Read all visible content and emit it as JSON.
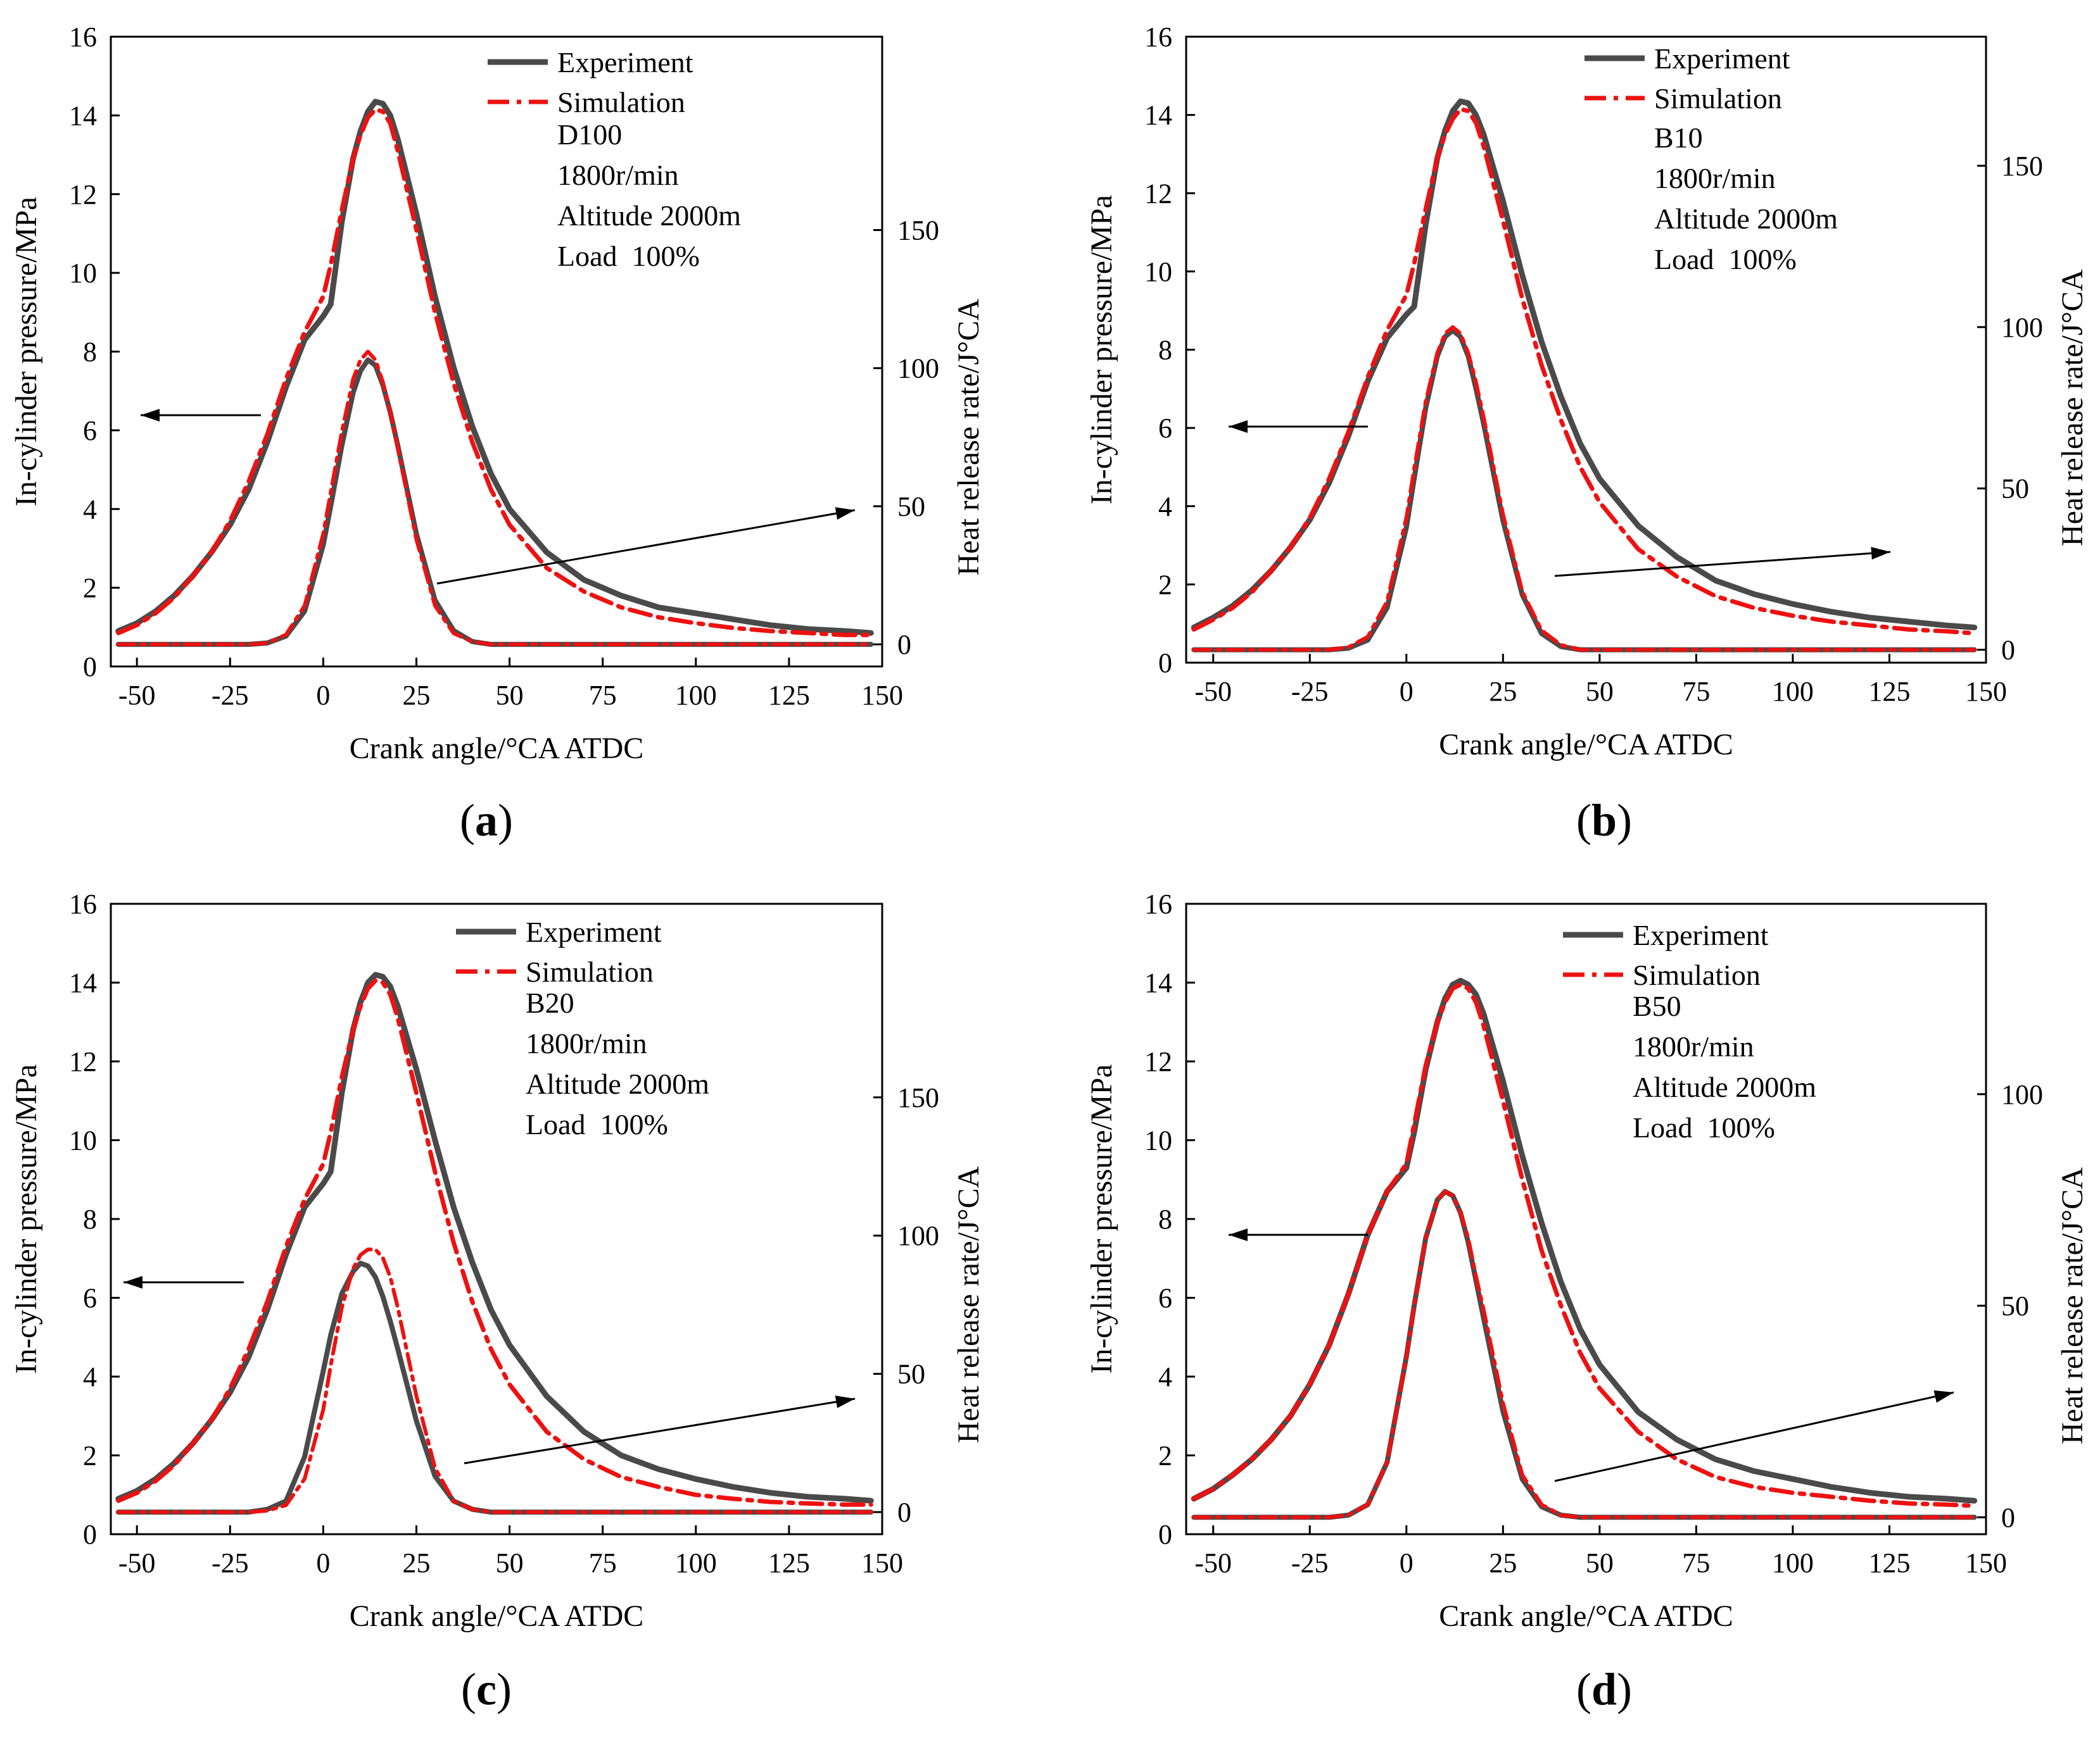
{
  "chart_data": [
    {
      "type": "line",
      "panel": "(a)",
      "caption": "(a)",
      "fuel": "D100",
      "annotations": [
        "D100",
        "1800r/min",
        "Altitude 2000m",
        "Load  100%"
      ],
      "xlabel": "Crank angle/°CA ATDC",
      "ylabel_left": "In-cylinder pressure/MPa",
      "ylabel_right": "Heat release rate/J°CA",
      "xlim": [
        -57,
        150
      ],
      "ylim_left": [
        0,
        16
      ],
      "ylim_right": [
        -8,
        220
      ],
      "x_ticks": [
        "-50",
        "-25",
        "0",
        "25",
        "50",
        "75",
        "100",
        "125",
        "150"
      ],
      "y_ticks_left": [
        "0",
        "2",
        "4",
        "6",
        "8",
        "10",
        "12",
        "14",
        "16"
      ],
      "y_ticks_right": [
        "0",
        "50",
        "100",
        "150"
      ],
      "legend": [
        "Experiment",
        "Simulation"
      ],
      "x": [
        -55,
        -50,
        -45,
        -40,
        -35,
        -30,
        -25,
        -20,
        -15,
        -10,
        -5,
        0,
        2,
        5,
        8,
        10,
        12,
        14,
        16,
        18,
        20,
        25,
        30,
        35,
        40,
        45,
        50,
        60,
        70,
        80,
        90,
        100,
        110,
        120,
        130,
        140,
        147
      ],
      "series": [
        {
          "name": "Experiment",
          "axis": "left",
          "values": [
            0.9,
            1.1,
            1.4,
            1.8,
            2.3,
            2.9,
            3.6,
            4.5,
            5.7,
            7.1,
            8.3,
            8.9,
            9.2,
            11.3,
            12.9,
            13.6,
            14.1,
            14.35,
            14.3,
            14.0,
            13.4,
            11.5,
            9.4,
            7.6,
            6.1,
            4.9,
            4.0,
            2.9,
            2.2,
            1.8,
            1.5,
            1.35,
            1.2,
            1.05,
            0.95,
            0.9,
            0.85
          ]
        },
        {
          "name": "Simulation",
          "axis": "left",
          "values": [
            0.85,
            1.05,
            1.35,
            1.75,
            2.3,
            2.9,
            3.7,
            4.7,
            5.9,
            7.3,
            8.5,
            9.4,
            10.2,
            11.6,
            12.9,
            13.5,
            13.95,
            14.15,
            14.1,
            13.8,
            13.1,
            11.1,
            9.0,
            7.2,
            5.7,
            4.5,
            3.6,
            2.5,
            1.9,
            1.5,
            1.25,
            1.1,
            0.98,
            0.9,
            0.85,
            0.8,
            0.8
          ]
        },
        {
          "name": "Experiment",
          "axis": "right",
          "values": [
            0,
            0,
            0,
            0,
            0,
            0,
            0,
            0,
            0.5,
            3,
            12,
            36,
            50,
            72,
            91,
            99,
            103,
            101,
            94,
            84,
            72,
            40,
            16,
            5,
            1,
            0,
            0,
            0,
            0,
            0,
            0,
            0,
            0,
            0,
            0,
            0,
            0
          ]
        },
        {
          "name": "Simulation",
          "axis": "right",
          "values": [
            0,
            0,
            0,
            0,
            0,
            0,
            0,
            0,
            0.5,
            3.5,
            14,
            40,
            55,
            77,
            96,
            103,
            106,
            103,
            95,
            84,
            71,
            38,
            14,
            4,
            1,
            0,
            0,
            0,
            0,
            0,
            0,
            0,
            0,
            0,
            0,
            0,
            0
          ]
        }
      ]
    },
    {
      "type": "line",
      "panel": "(b)",
      "caption": "(b)",
      "fuel": "B10",
      "annotations": [
        "B10",
        "1800r/min",
        "Altitude 2000m",
        "Load  100%"
      ],
      "xlabel": "Crank angle/°CA ATDC",
      "ylabel_left": "In-cylinder pressure/MPa",
      "ylabel_right": "Heat release rate/J°CA",
      "xlim": [
        -57,
        150
      ],
      "ylim_left": [
        0,
        16
      ],
      "ylim_right": [
        -4,
        190
      ],
      "x_ticks": [
        "-50",
        "-25",
        "0",
        "25",
        "50",
        "75",
        "100",
        "125",
        "150"
      ],
      "y_ticks_left": [
        "0",
        "2",
        "4",
        "6",
        "8",
        "10",
        "12",
        "14",
        "16"
      ],
      "y_ticks_right": [
        "0",
        "50",
        "100",
        "150"
      ],
      "legend": [
        "Experiment",
        "Simulation"
      ],
      "x": [
        -55,
        -50,
        -45,
        -40,
        -35,
        -30,
        -25,
        -20,
        -15,
        -10,
        -5,
        0,
        2,
        5,
        8,
        10,
        12,
        14,
        16,
        18,
        20,
        25,
        30,
        35,
        40,
        45,
        50,
        60,
        70,
        80,
        90,
        100,
        110,
        120,
        130,
        140,
        147
      ],
      "series": [
        {
          "name": "Experiment",
          "axis": "left",
          "values": [
            0.9,
            1.15,
            1.45,
            1.85,
            2.35,
            2.95,
            3.65,
            4.6,
            5.8,
            7.2,
            8.3,
            8.9,
            9.1,
            11.2,
            12.9,
            13.6,
            14.1,
            14.35,
            14.3,
            14.0,
            13.5,
            11.8,
            9.9,
            8.2,
            6.8,
            5.6,
            4.7,
            3.5,
            2.7,
            2.1,
            1.75,
            1.5,
            1.3,
            1.15,
            1.05,
            0.95,
            0.9
          ]
        },
        {
          "name": "Simulation",
          "axis": "left",
          "values": [
            0.85,
            1.1,
            1.4,
            1.8,
            2.35,
            2.95,
            3.7,
            4.7,
            5.9,
            7.3,
            8.5,
            9.4,
            10.2,
            11.6,
            12.9,
            13.5,
            13.9,
            14.15,
            14.1,
            13.8,
            13.2,
            11.3,
            9.3,
            7.6,
            6.2,
            5.0,
            4.1,
            2.9,
            2.2,
            1.7,
            1.4,
            1.2,
            1.05,
            0.95,
            0.85,
            0.8,
            0.75
          ]
        },
        {
          "name": "Experiment",
          "axis": "right",
          "values": [
            0,
            0,
            0,
            0,
            0,
            0,
            0,
            0,
            0.5,
            3,
            13,
            38,
            53,
            75,
            91,
            97,
            99,
            97,
            91,
            81,
            70,
            40,
            17,
            5,
            1,
            0,
            0,
            0,
            0,
            0,
            0,
            0,
            0,
            0,
            0,
            0,
            0
          ]
        },
        {
          "name": "Simulation",
          "axis": "right",
          "values": [
            0,
            0,
            0,
            0,
            0,
            0,
            0,
            0,
            0.8,
            4,
            15,
            41,
            56,
            77,
            92,
            98,
            100,
            98,
            92,
            83,
            72,
            42,
            18,
            6,
            1.5,
            0,
            0,
            0,
            0,
            0,
            0,
            0,
            0,
            0,
            0,
            0,
            0
          ]
        }
      ]
    },
    {
      "type": "line",
      "panel": "(c)",
      "caption": "(c)",
      "fuel": "B20",
      "annotations": [
        "B20",
        "1800r/min",
        "Altitude 2000m",
        "Load  100%"
      ],
      "xlabel": "Crank angle/°CA ATDC",
      "ylabel_left": "In-cylinder pressure/MPa",
      "ylabel_right": "Heat release rate/J°CA",
      "xlim": [
        -57,
        150
      ],
      "ylim_left": [
        0,
        16
      ],
      "ylim_right": [
        -8,
        220
      ],
      "x_ticks": [
        "-50",
        "-25",
        "0",
        "25",
        "50",
        "75",
        "100",
        "125",
        "150"
      ],
      "y_ticks_left": [
        "0",
        "2",
        "4",
        "6",
        "8",
        "10",
        "12",
        "14",
        "16"
      ],
      "y_ticks_right": [
        "0",
        "50",
        "100",
        "150"
      ],
      "legend": [
        "Experiment",
        "Simulation"
      ],
      "x": [
        -55,
        -50,
        -45,
        -40,
        -35,
        -30,
        -25,
        -20,
        -15,
        -10,
        -5,
        0,
        2,
        5,
        8,
        10,
        12,
        14,
        16,
        18,
        20,
        25,
        30,
        35,
        40,
        45,
        50,
        60,
        70,
        80,
        90,
        100,
        110,
        120,
        130,
        140,
        147
      ],
      "series": [
        {
          "name": "Experiment",
          "axis": "left",
          "values": [
            0.9,
            1.1,
            1.4,
            1.8,
            2.3,
            2.9,
            3.6,
            4.5,
            5.7,
            7.1,
            8.3,
            8.9,
            9.2,
            11.2,
            12.8,
            13.5,
            14.0,
            14.2,
            14.15,
            13.9,
            13.4,
            11.8,
            10.0,
            8.3,
            6.9,
            5.7,
            4.8,
            3.5,
            2.6,
            2.0,
            1.65,
            1.4,
            1.2,
            1.05,
            0.95,
            0.9,
            0.85
          ]
        },
        {
          "name": "Simulation",
          "axis": "left",
          "values": [
            0.85,
            1.05,
            1.35,
            1.75,
            2.3,
            2.9,
            3.7,
            4.7,
            5.9,
            7.3,
            8.5,
            9.4,
            10.2,
            11.6,
            12.8,
            13.4,
            13.85,
            14.05,
            14.0,
            13.7,
            13.1,
            11.2,
            9.2,
            7.4,
            5.9,
            4.7,
            3.8,
            2.6,
            1.9,
            1.45,
            1.2,
            1.0,
            0.9,
            0.82,
            0.78,
            0.75,
            0.75
          ]
        },
        {
          "name": "Experiment",
          "axis": "right",
          "values": [
            0,
            0,
            0,
            0,
            0,
            0,
            0,
            0,
            1,
            4,
            20,
            51,
            64,
            79,
            87,
            90,
            89,
            85,
            78,
            69,
            59,
            33,
            13,
            4,
            1,
            0,
            0,
            0,
            0,
            0,
            0,
            0,
            0,
            0,
            0,
            0,
            0
          ]
        },
        {
          "name": "Simulation",
          "axis": "right",
          "values": [
            0,
            0,
            0,
            0,
            0,
            0,
            0,
            0,
            0.5,
            2.5,
            12,
            37,
            53,
            74,
            88,
            93,
            95,
            95,
            92,
            85,
            74,
            42,
            16,
            4,
            1,
            0,
            0,
            0,
            0,
            0,
            0,
            0,
            0,
            0,
            0,
            0,
            0
          ]
        }
      ]
    },
    {
      "type": "line",
      "panel": "(d)",
      "caption": "(d)",
      "fuel": "B50",
      "annotations": [
        "B50",
        "1800r/min",
        "Altitude 2000m",
        "Load  100%"
      ],
      "xlabel": "Crank angle/°CA ATDC",
      "ylabel_left": "In-cylinder pressure/MPa",
      "ylabel_right": "Heat release rate/J°CA",
      "xlim": [
        -57,
        150
      ],
      "ylim_left": [
        0,
        16
      ],
      "ylim_right": [
        -4,
        145
      ],
      "x_ticks": [
        "-50",
        "-25",
        "0",
        "25",
        "50",
        "75",
        "100",
        "125",
        "150"
      ],
      "y_ticks_left": [
        "0",
        "2",
        "4",
        "6",
        "8",
        "10",
        "12",
        "14",
        "16"
      ],
      "y_ticks_right": [
        "0",
        "50",
        "100"
      ],
      "legend": [
        "Experiment",
        "Simulation"
      ],
      "x": [
        -55,
        -50,
        -45,
        -40,
        -35,
        -30,
        -25,
        -20,
        -15,
        -10,
        -5,
        0,
        2,
        5,
        8,
        10,
        12,
        14,
        16,
        18,
        20,
        25,
        30,
        35,
        40,
        45,
        50,
        60,
        70,
        80,
        90,
        100,
        110,
        120,
        130,
        140,
        147
      ],
      "series": [
        {
          "name": "Experiment",
          "axis": "left",
          "values": [
            0.9,
            1.15,
            1.5,
            1.9,
            2.4,
            3.0,
            3.8,
            4.8,
            6.1,
            7.6,
            8.7,
            9.3,
            10.2,
            11.8,
            13.0,
            13.6,
            13.95,
            14.05,
            13.95,
            13.7,
            13.2,
            11.5,
            9.6,
            7.9,
            6.4,
            5.2,
            4.3,
            3.1,
            2.4,
            1.9,
            1.6,
            1.4,
            1.2,
            1.05,
            0.95,
            0.9,
            0.85
          ]
        },
        {
          "name": "Simulation",
          "axis": "left",
          "values": [
            0.9,
            1.15,
            1.5,
            1.9,
            2.4,
            3.0,
            3.8,
            4.8,
            6.1,
            7.6,
            8.7,
            9.4,
            10.4,
            11.9,
            13.0,
            13.5,
            13.85,
            13.95,
            13.85,
            13.5,
            12.9,
            11.0,
            9.0,
            7.2,
            5.8,
            4.6,
            3.7,
            2.6,
            1.9,
            1.45,
            1.2,
            1.05,
            0.95,
            0.85,
            0.78,
            0.75,
            0.72
          ]
        },
        {
          "name": "Experiment",
          "axis": "right",
          "values": [
            0,
            0,
            0,
            0,
            0,
            0,
            0,
            0,
            0.5,
            3,
            13,
            38,
            50,
            66,
            75,
            77,
            76,
            72,
            65,
            56,
            47,
            25,
            9,
            2.5,
            0.5,
            0,
            0,
            0,
            0,
            0,
            0,
            0,
            0,
            0,
            0,
            0,
            0
          ]
        },
        {
          "name": "Simulation",
          "axis": "right",
          "values": [
            0,
            0,
            0,
            0,
            0,
            0,
            0,
            0,
            0.5,
            3,
            13,
            38,
            50,
            66,
            75,
            77,
            76,
            72,
            66,
            57,
            49,
            27,
            10,
            3,
            0.5,
            0,
            0,
            0,
            0,
            0,
            0,
            0,
            0,
            0,
            0,
            0,
            0
          ]
        }
      ]
    }
  ]
}
